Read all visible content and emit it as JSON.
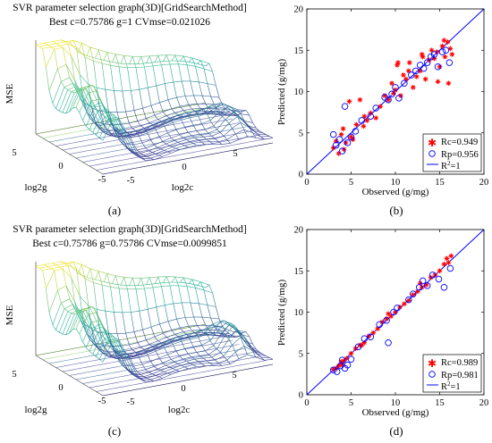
{
  "panels": [
    {
      "id": "a",
      "kind": "surface3d",
      "title": "SVR parameter selection graph(3D)[GridSearchMethod]",
      "subtitle": "Best c=0.75786 g=1 CVmse=0.021026",
      "zlabel": "MSE",
      "xlabel": "log2c",
      "ylabel": "log2g",
      "xticks": [
        "-5",
        "0",
        "5"
      ],
      "yticks": [
        "5",
        "0",
        "-5"
      ],
      "caption": "(a)"
    },
    {
      "id": "b",
      "kind": "scatter",
      "xlabel": "Observed (g/mg)",
      "ylabel": "Predicted (g/mg)",
      "xticks": [
        "0",
        "5",
        "10",
        "15",
        "20"
      ],
      "yticks": [
        "0",
        "5",
        "10",
        "15",
        "20"
      ],
      "legend": [
        {
          "marker": "star",
          "label": "Rc=0.949"
        },
        {
          "marker": "circle",
          "label": "Rp=0.956"
        },
        {
          "marker": "line",
          "label_main": "R",
          "label_sup": "2",
          "label_tail": "=1"
        }
      ],
      "caption": "(b)"
    },
    {
      "id": "c",
      "kind": "surface3d",
      "title": "SVR parameter selection graph(3D)[GridSearchMethod]",
      "subtitle": "Best c=0.75786 g=0.75786 CVmse=0.0099851",
      "zlabel": "MSE",
      "xlabel": "log2c",
      "ylabel": "log2g",
      "xticks": [
        "-5",
        "0",
        "5"
      ],
      "yticks": [
        "5",
        "0",
        "-5"
      ],
      "caption": "(c)"
    },
    {
      "id": "d",
      "kind": "scatter",
      "xlabel": "Observed (g/mg)",
      "ylabel": "Predicted (g/mg)",
      "xticks": [
        "0",
        "5",
        "10",
        "15",
        "20"
      ],
      "yticks": [
        "0",
        "5",
        "10",
        "15",
        "20"
      ],
      "legend": [
        {
          "marker": "star",
          "label": "Rc=0.989"
        },
        {
          "marker": "circle",
          "label": "Rp=0.981"
        },
        {
          "marker": "line",
          "label_main": "R",
          "label_sup": "2",
          "label_tail": "=1"
        }
      ],
      "caption": "(d)"
    }
  ],
  "colors": {
    "calibration": "#ff0000",
    "prediction": "#0000ff",
    "fit_line": "#0000ff",
    "surface_low": "#3b2b8f",
    "surface_mid": "#21b3a0",
    "surface_high": "#f0e020"
  },
  "chart_data": [
    {
      "panel": "b",
      "type": "scatter",
      "xlim": [
        0,
        20
      ],
      "ylim": [
        0,
        20
      ],
      "grid": false,
      "legend_position": "bottom-right",
      "series": [
        {
          "name": "Rc=0.949",
          "marker": "star",
          "x": [
            3.0,
            3.3,
            3.6,
            3.9,
            4.1,
            4.4,
            4.8,
            5.2,
            5.6,
            6.0,
            6.4,
            6.8,
            7.2,
            7.8,
            8.3,
            8.8,
            9.2,
            9.6,
            10.0,
            10.3,
            10.6,
            10.9,
            11.2,
            11.6,
            12.0,
            12.4,
            12.8,
            13.1,
            13.4,
            13.8,
            14.1,
            14.4,
            14.7,
            15.0,
            15.3,
            15.6,
            15.9,
            16.2,
            16.4,
            4.2,
            5.0,
            6.5,
            9.8,
            10.2,
            11.5,
            13.0,
            14.8,
            16.0,
            15.5
          ],
          "y": [
            3.2,
            4.0,
            2.5,
            4.8,
            5.5,
            3.8,
            8.8,
            4.2,
            6.0,
            9.0,
            5.8,
            6.5,
            7.4,
            6.8,
            8.2,
            9.5,
            9.0,
            11.0,
            10.2,
            13.5,
            9.5,
            12.0,
            11.5,
            13.5,
            10.5,
            11.8,
            12.5,
            14.2,
            11.5,
            13.8,
            15.0,
            14.0,
            14.8,
            13.0,
            15.5,
            14.2,
            16.0,
            15.2,
            14.5,
            3.0,
            4.5,
            7.0,
            9.8,
            13.2,
            12.5,
            14.5,
            11.2,
            11.0,
            16.2
          ]
        },
        {
          "name": "Rp=0.956",
          "marker": "circle",
          "x": [
            3.0,
            3.3,
            3.7,
            4.0,
            4.3,
            4.6,
            5.0,
            5.5,
            6.2,
            7.2,
            7.8,
            8.8,
            9.2,
            9.6,
            10.0,
            10.4,
            11.0,
            11.8,
            12.3,
            12.8,
            13.2,
            13.6,
            14.0,
            14.4,
            14.8,
            15.3,
            15.7,
            16.1
          ],
          "y": [
            4.8,
            3.5,
            4.2,
            2.8,
            8.2,
            3.8,
            4.5,
            5.2,
            6.5,
            7.0,
            8.0,
            9.3,
            9.0,
            9.7,
            10.5,
            9.2,
            11.0,
            12.0,
            12.5,
            13.2,
            12.8,
            13.5,
            14.2,
            14.5,
            13.0,
            14.8,
            15.0,
            13.5
          ]
        },
        {
          "name": "R2=1",
          "marker": "line",
          "x": [
            0,
            20
          ],
          "y": [
            0,
            20
          ]
        }
      ]
    },
    {
      "panel": "d",
      "type": "scatter",
      "xlim": [
        0,
        20
      ],
      "ylim": [
        0,
        20
      ],
      "grid": false,
      "legend_position": "bottom-right",
      "series": [
        {
          "name": "Rc=0.989",
          "marker": "star",
          "x": [
            3.0,
            3.3,
            3.6,
            3.9,
            4.2,
            4.5,
            5.0,
            5.5,
            6.0,
            6.5,
            7.0,
            7.5,
            8.0,
            8.5,
            9.0,
            9.5,
            10.0,
            10.5,
            11.0,
            11.5,
            12.0,
            12.5,
            13.0,
            13.5,
            14.0,
            14.5,
            15.0,
            15.5,
            16.0,
            16.3,
            4.0,
            6.2,
            9.2,
            12.8,
            15.8
          ],
          "y": [
            3.1,
            3.2,
            3.5,
            4.0,
            4.1,
            4.4,
            5.0,
            5.6,
            6.0,
            6.3,
            7.1,
            7.5,
            8.0,
            8.8,
            9.2,
            9.5,
            10.0,
            10.6,
            11.0,
            11.4,
            12.1,
            12.5,
            13.0,
            13.3,
            14.2,
            14.5,
            15.0,
            15.8,
            16.0,
            16.8,
            3.6,
            6.0,
            9.8,
            13.5,
            16.5
          ]
        },
        {
          "name": "Rp=0.981",
          "marker": "circle",
          "x": [
            3.0,
            3.4,
            3.8,
            4.0,
            4.3,
            4.6,
            5.0,
            5.8,
            6.5,
            7.2,
            8.2,
            9.0,
            9.2,
            9.8,
            10.2,
            11.5,
            12.0,
            12.7,
            13.1,
            13.6,
            14.2,
            14.9,
            15.5,
            16.2
          ],
          "y": [
            3.0,
            2.8,
            3.5,
            4.2,
            3.2,
            3.6,
            4.3,
            5.8,
            6.8,
            7.0,
            8.5,
            9.0,
            6.3,
            10.0,
            10.5,
            11.5,
            12.2,
            13.0,
            13.8,
            13.2,
            14.5,
            14.0,
            13.0,
            15.3
          ]
        },
        {
          "name": "R2=1",
          "marker": "line",
          "x": [
            0,
            20
          ],
          "y": [
            0,
            20
          ]
        }
      ]
    }
  ]
}
